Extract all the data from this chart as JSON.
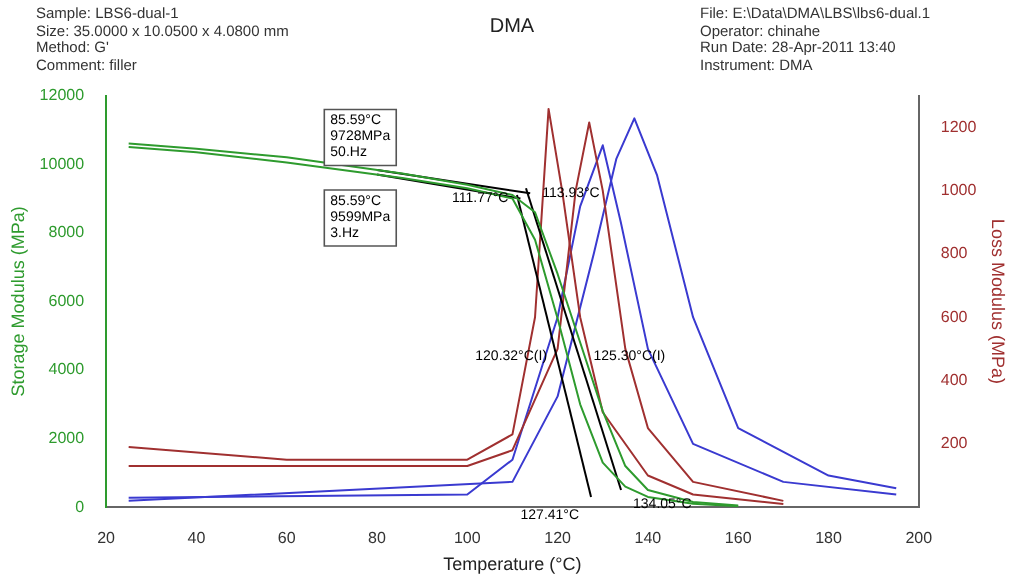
{
  "chart_data": {
    "type": "line",
    "title": "DMA",
    "xlabel": "Temperature (°C)",
    "ylabel": "Storage Modulus (MPa)",
    "y2label": "Loss Modulus (MPa)",
    "xlim": [
      20,
      200
    ],
    "xticks": [
      20,
      40,
      60,
      80,
      100,
      120,
      140,
      160,
      180,
      200
    ],
    "ylim": [
      0,
      12000
    ],
    "yticks": [
      0,
      2000,
      4000,
      6000,
      8000,
      10000,
      12000
    ],
    "y2lim": [
      0,
      1300
    ],
    "y2ticks": [
      200,
      400,
      600,
      800,
      1000,
      1200
    ],
    "grid": false,
    "legend": false,
    "marker": "none",
    "line_style": "solid",
    "series": [
      {
        "color": "#2e9b2e",
        "x": [
          25,
          40,
          60,
          85.59,
          100,
          110,
          115,
          120,
          125,
          130,
          135,
          140,
          150,
          160
        ],
        "values": [
          10600,
          10450,
          10200,
          9728,
          9400,
          9100,
          8600,
          6800,
          4800,
          2800,
          1200,
          500,
          150,
          50
        ]
      },
      {
        "color": "#2e9b2e",
        "x": [
          25,
          40,
          60,
          85.59,
          100,
          110,
          115,
          120,
          125,
          130,
          135,
          140,
          150,
          160
        ],
        "values": [
          10500,
          10350,
          10050,
          9599,
          9300,
          9000,
          7800,
          5500,
          3000,
          1300,
          600,
          300,
          100,
          30
        ]
      },
      {
        "color": "#000000",
        "x": [
          80,
          113.93
        ],
        "values": [
          9830,
          9150
        ]
      },
      {
        "color": "#000000",
        "x": [
          80,
          111.77
        ],
        "values": [
          9700,
          9000
        ]
      },
      {
        "color": "#000000",
        "x": [
          113,
          134.05
        ],
        "values": [
          9300,
          500
        ]
      },
      {
        "color": "#000000",
        "x": [
          111,
          127.41
        ],
        "values": [
          9100,
          300
        ]
      },
      {
        "color": "#a03030",
        "axis": "y2",
        "x": [
          25,
          60,
          100,
          110,
          115,
          118,
          121,
          125,
          130,
          140,
          150,
          170
        ],
        "values": [
          190,
          150,
          150,
          230,
          600,
          1258,
          1000,
          600,
          300,
          100,
          40,
          10
        ]
      },
      {
        "color": "#a03030",
        "axis": "y2",
        "x": [
          25,
          60,
          100,
          110,
          120,
          124,
          127,
          130,
          135,
          140,
          150,
          170
        ],
        "values": [
          130,
          130,
          130,
          180,
          500,
          1000,
          1215,
          1000,
          500,
          250,
          80,
          20
        ]
      },
      {
        "color": "#3a3ad0",
        "axis": "y2",
        "x": [
          25,
          100,
          110,
          120,
          125,
          130,
          134,
          140,
          150,
          170,
          195
        ],
        "values": [
          30,
          40,
          150,
          600,
          950,
          1143,
          900,
          500,
          200,
          80,
          40
        ]
      },
      {
        "color": "#3a3ad0",
        "axis": "y2",
        "x": [
          25,
          110,
          120,
          128,
          133,
          137,
          142,
          150,
          160,
          180,
          195
        ],
        "values": [
          20,
          80,
          350,
          800,
          1100,
          1228,
          1050,
          600,
          250,
          100,
          60
        ]
      }
    ],
    "annotations": [
      "Sample: LBS6-dual-1",
      "Size:  35.0000 x 10.0500 x 4.0800 mm",
      "Method: G'",
      "Comment: filler",
      "File: E:\\Data\\DMA\\LBS\\lbs6-dual.1",
      "Operator: chinahe",
      "Run Date: 28-Apr-2011 13:40",
      "Instrument: DMA",
      {
        "text": "85.59°C\n9728MPa\n50.Hz",
        "x": 85.59,
        "y": 9728
      },
      {
        "text": "85.59°C\n9599MPa\n3.Hz",
        "x": 85.59,
        "y": 9599
      },
      {
        "text": "111.77°C",
        "x": 111.77,
        "y": 9000
      },
      {
        "text": "113.93°C",
        "x": 113.93,
        "y": 9150
      },
      {
        "text": "120.32°C(I)",
        "x": 120.32,
        "y": 4400
      },
      {
        "text": "125.30°C(I)",
        "x": 125.3,
        "y": 4400
      },
      {
        "text": "127.41°C",
        "x": 127.41,
        "y": 300
      },
      {
        "text": "134.05°C",
        "x": 134.05,
        "y": 600
      }
    ]
  }
}
